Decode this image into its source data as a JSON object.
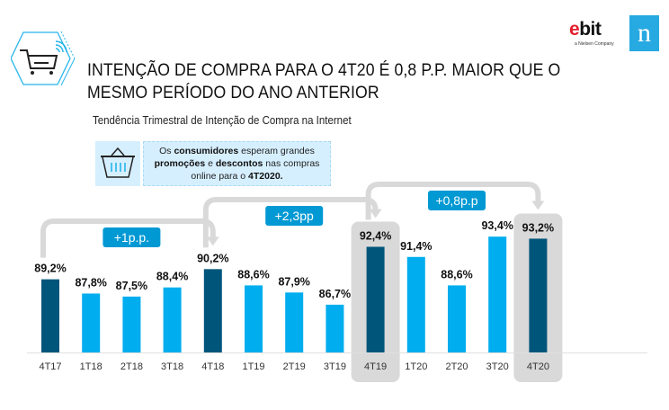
{
  "header": {
    "title_line1": "INTENÇÃO DE COMPRA PARA O 4T20 É 0,8 P.P. MAIOR QUE O",
    "title_line2": "MESMO PERÍODO DO ANO ANTERIOR",
    "subtitle": "Tendência Trimestral de Intenção de Compra na Internet",
    "icon": "shopping-cart-hexagon-icon"
  },
  "brand": {
    "ebit_e": "e",
    "ebit_rest": "bit",
    "ebit_tagline": "a Nielsen Company",
    "nielsen_letter": "n",
    "nielsen_color": "#27a9e1",
    "ebit_color": "#e4202e"
  },
  "callout": {
    "icon": "basket-icon",
    "segments": [
      {
        "text": "Os ",
        "bold": false
      },
      {
        "text": "consumidores",
        "bold": true
      },
      {
        "text": " esperam grandes ",
        "bold": false
      },
      {
        "text": "promoções",
        "bold": true
      },
      {
        "text": " e ",
        "bold": false
      },
      {
        "text": "descontos",
        "bold": true
      },
      {
        "text": " nas compras online para o ",
        "bold": false
      },
      {
        "text": "4T2020.",
        "bold": true
      }
    ]
  },
  "colors": {
    "highlight_bar": "#00557a",
    "regular_bar": "#00adee",
    "badge": "#0099d3",
    "arrow": "#d9d9d9",
    "highlight_bg": "#d9d9d9"
  },
  "chart_data": {
    "type": "bar",
    "title": "Tendência Trimestral de Intenção de Compra na Internet",
    "xlabel": "",
    "ylabel": "",
    "ylim": [
      82,
      95
    ],
    "grid": false,
    "categories": [
      "4T17",
      "1T18",
      "2T18",
      "3T18",
      "4T18",
      "1T19",
      "2T19",
      "3T19",
      "4T19",
      "1T20",
      "2T20",
      "3T20",
      "4T20"
    ],
    "values": [
      89.2,
      87.8,
      87.5,
      88.4,
      90.2,
      88.6,
      87.9,
      86.7,
      92.4,
      91.4,
      88.6,
      93.4,
      93.2
    ],
    "value_labels": [
      "89,2%",
      "87,8%",
      "87,5%",
      "88,4%",
      "90,2%",
      "88,6%",
      "87,9%",
      "86,7%",
      "92,4%",
      "91,4%",
      "88,6%",
      "93,4%",
      "93,2%"
    ],
    "highlighted": [
      "4T17",
      "4T18",
      "4T19",
      "4T20"
    ],
    "boxed": [
      "4T19",
      "4T20"
    ],
    "annotations": [
      {
        "from": "4T17",
        "to": "4T18",
        "label": "+1p.p."
      },
      {
        "from": "4T18",
        "to": "4T19",
        "label": "+2,3pp"
      },
      {
        "from": "4T19",
        "to": "4T20",
        "label": "+0,8p.p"
      }
    ]
  }
}
